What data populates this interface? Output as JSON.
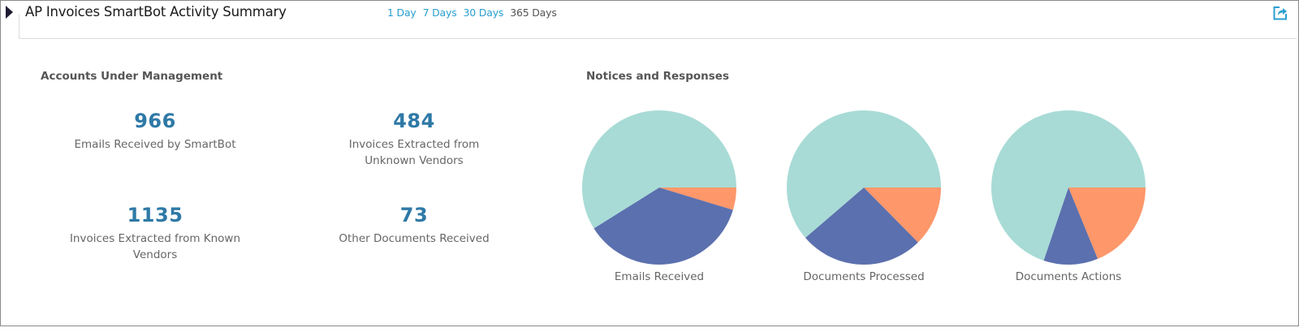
{
  "header": {
    "title": "AP Invoices SmartBot Activity Summary",
    "ranges": [
      {
        "label": "1 Day",
        "active": false
      },
      {
        "label": "7 Days",
        "active": false
      },
      {
        "label": "30 Days",
        "active": false
      },
      {
        "label": "365 Days",
        "active": true
      }
    ],
    "collapse_icon": "triangle-right-icon",
    "export_icon": "share-export-icon"
  },
  "accounts": {
    "title": "Accounts Under Management",
    "stats": [
      {
        "value": "966",
        "label": "Emails Received by SmartBot"
      },
      {
        "value": "484",
        "label": "Invoices Extracted from Unknown Vendors"
      },
      {
        "value": "1135",
        "label": "Invoices Extracted from Known Vendors"
      },
      {
        "value": "73",
        "label": "Other Documents Received"
      }
    ]
  },
  "notices": {
    "title": "Notices and Responses"
  },
  "colors": {
    "accent_link": "#2a9fd0",
    "stat_number": "#2e79a6",
    "teal": "#a8dbd6",
    "blue": "#5b70ae",
    "orange": "#fe976a"
  },
  "chart_data": [
    {
      "type": "pie",
      "title": "Emails Received",
      "categories": [
        "Series A (orange)",
        "Series B (blue)",
        "Series C (teal)"
      ],
      "values": [
        4.7,
        36.4,
        58.9
      ],
      "colors": [
        "#fe976a",
        "#5b70ae",
        "#a8dbd6"
      ],
      "start_angle_deg": 0,
      "direction": "clockwise",
      "unit": "percent (estimated)"
    },
    {
      "type": "pie",
      "title": "Documents Processed",
      "categories": [
        "Series A (orange)",
        "Series B (blue)",
        "Series C (teal)"
      ],
      "values": [
        12.6,
        26.1,
        61.3
      ],
      "colors": [
        "#fe976a",
        "#5b70ae",
        "#a8dbd6"
      ],
      "start_angle_deg": 0,
      "direction": "clockwise",
      "unit": "percent (estimated)"
    },
    {
      "type": "pie",
      "title": "Documents Actions",
      "categories": [
        "Series A (orange)",
        "Series B (blue)",
        "Series C (teal)"
      ],
      "values": [
        18.8,
        11.4,
        69.8
      ],
      "colors": [
        "#fe976a",
        "#5b70ae",
        "#a8dbd6"
      ],
      "start_angle_deg": 0,
      "direction": "clockwise",
      "unit": "percent (estimated)"
    }
  ]
}
